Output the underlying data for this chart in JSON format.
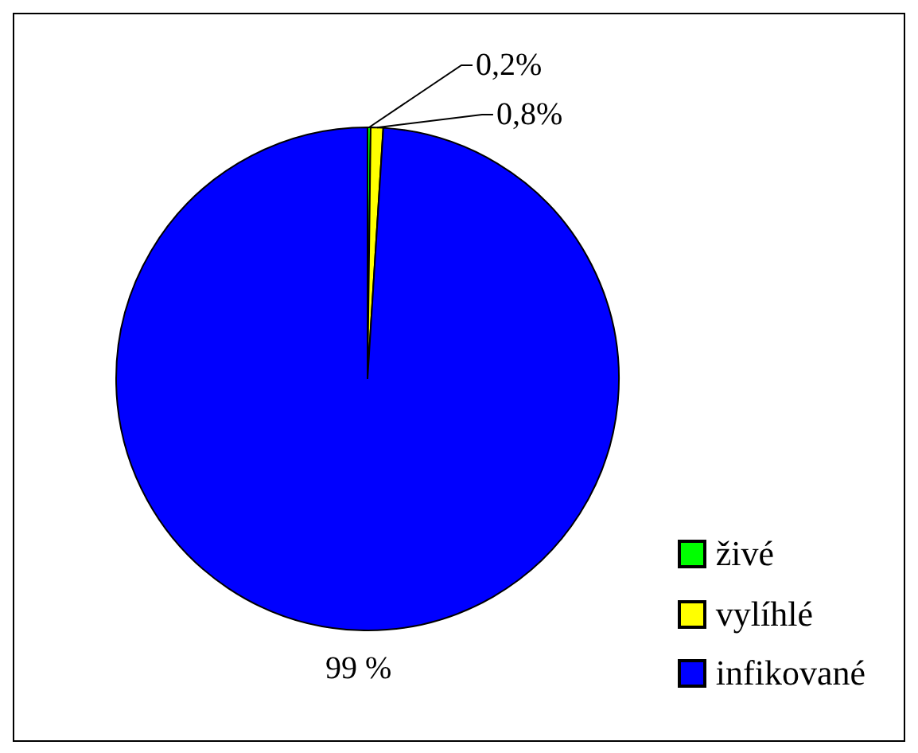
{
  "chart_data": {
    "type": "pie",
    "categories": [
      "živé",
      "vylíhlé",
      "infikované"
    ],
    "values": [
      0.2,
      0.8,
      99
    ],
    "colors": [
      "#00ff00",
      "#ffff00",
      "#0000ff"
    ],
    "value_labels": [
      "0,2%",
      "0,8%",
      "99 %"
    ],
    "legend": "bottom right"
  }
}
